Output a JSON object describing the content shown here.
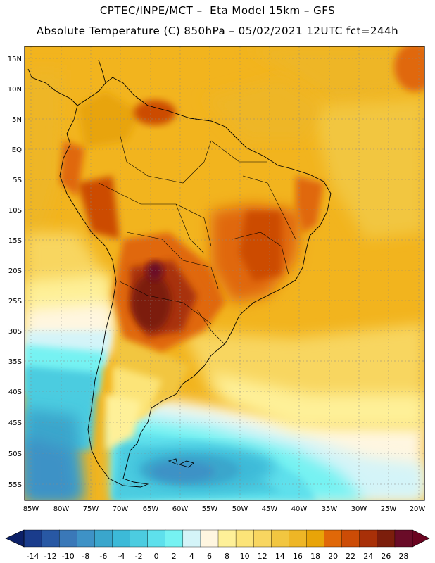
{
  "header": {
    "title_line1": "CPTEC/INPE/MCT –  Eta Model 15km – GFS",
    "title_line2": "Absolute Temperature (C) 850hPa – 05/02/2021 12UTC fct=244h"
  },
  "map": {
    "lat_labels": [
      "15N",
      "10N",
      "5N",
      "EQ",
      "5S",
      "10S",
      "15S",
      "20S",
      "25S",
      "30S",
      "35S",
      "40S",
      "45S",
      "50S",
      "55S"
    ],
    "lon_labels": [
      "85W",
      "80W",
      "75W",
      "70W",
      "65W",
      "60W",
      "55W",
      "50W",
      "45W",
      "40W",
      "35W",
      "30W",
      "25W",
      "20W"
    ]
  },
  "colorbar": {
    "labels": [
      "-14",
      "-12",
      "-10",
      "-8",
      "-6",
      "-4",
      "-2",
      "0",
      "2",
      "4",
      "6",
      "8",
      "10",
      "12",
      "14",
      "16",
      "18",
      "20",
      "22",
      "24",
      "26",
      "28"
    ],
    "colors": [
      "#1a3c8c",
      "#2858a4",
      "#3a78b8",
      "#3e92c6",
      "#3aa6cc",
      "#3cbad8",
      "#4ccce0",
      "#5ee0ec",
      "#76f2f2",
      "#d4f4f8",
      "#fff6e0",
      "#fef098",
      "#fce478",
      "#f8d660",
      "#f2c640",
      "#eeb626",
      "#e8a408",
      "#e06808",
      "#cc4c06",
      "#a83008",
      "#7c1e0c",
      "#6a0c28"
    ],
    "low_color": "#0c2068",
    "high_color": "#6a0420"
  }
}
